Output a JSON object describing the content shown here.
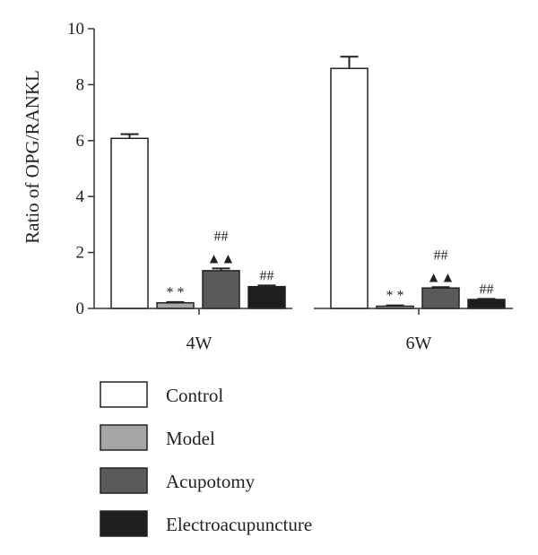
{
  "chart_data": {
    "type": "bar",
    "ylabel": "Ratio of OPG/RANKL",
    "ylim": [
      0,
      10
    ],
    "yticks": [
      0,
      2,
      4,
      6,
      8,
      10
    ],
    "categories": [
      "4W",
      "6W"
    ],
    "series": [
      {
        "name": "Control",
        "values": [
          6.08,
          8.58
        ],
        "errors": [
          0.15,
          0.42
        ],
        "color": "#ffffff"
      },
      {
        "name": "Model",
        "values": [
          0.2,
          0.08
        ],
        "errors": [
          0.03,
          0.03
        ],
        "color": "#a6a6a6"
      },
      {
        "name": "Acupotomy",
        "values": [
          1.35,
          0.73
        ],
        "errors": [
          0.08,
          0.03
        ],
        "color": "#5a5a5a"
      },
      {
        "name": "Electroacupuncture",
        "values": [
          0.78,
          0.32
        ],
        "errors": [
          0.04,
          0.02
        ],
        "color": "#1e1e1e"
      }
    ],
    "annotations": [
      {
        "category": "4W",
        "series": "Model",
        "lines": [
          "* *"
        ]
      },
      {
        "category": "4W",
        "series": "Acupotomy",
        "lines": [
          "##",
          "▲▲"
        ]
      },
      {
        "category": "4W",
        "series": "Electroacupuncture",
        "lines": [
          "##"
        ]
      },
      {
        "category": "6W",
        "series": "Model",
        "lines": [
          "* *"
        ]
      },
      {
        "category": "6W",
        "series": "Acupotomy",
        "lines": [
          "##",
          "▲▲"
        ]
      },
      {
        "category": "6W",
        "series": "Electroacupuncture",
        "lines": [
          "##"
        ]
      }
    ],
    "legend_position": "bottom-left"
  }
}
